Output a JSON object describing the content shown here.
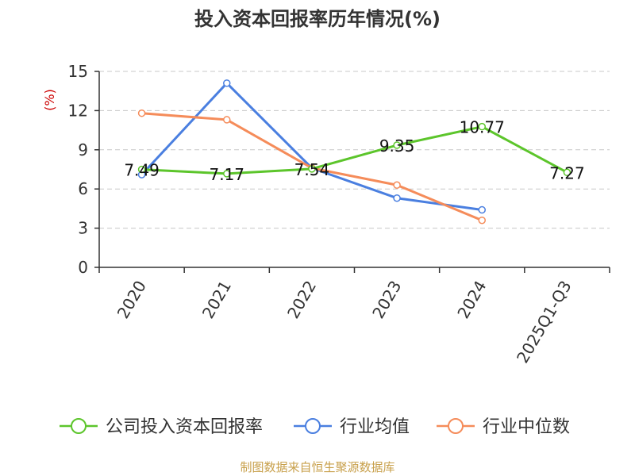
{
  "chart_data": {
    "type": "line",
    "title": "投入资本回报率历年情况(%)",
    "ylabel": "(%)",
    "ylim": [
      0,
      15
    ],
    "yticks": [
      0,
      3,
      6,
      9,
      12,
      15
    ],
    "categories": [
      "2020",
      "2021",
      "2022",
      "2023",
      "2024",
      "2025Q1-Q3"
    ],
    "grid": true,
    "legend_position": "bottom",
    "series": [
      {
        "name": "公司投入资本回报率",
        "color": "#5cc52b",
        "values": [
          7.49,
          7.17,
          7.54,
          9.35,
          10.77,
          7.27
        ],
        "labels": [
          "7.49",
          "7.17",
          "7.54",
          "9.35",
          "10.77",
          "7.27"
        ]
      },
      {
        "name": "行业均值",
        "color": "#4a7fe0",
        "values": [
          7.1,
          14.1,
          7.6,
          5.3,
          4.4,
          null
        ]
      },
      {
        "name": "行业中位数",
        "color": "#f58c5a",
        "values": [
          11.8,
          11.3,
          7.6,
          6.3,
          3.6,
          null
        ]
      }
    ]
  },
  "source": "制图数据来自恒生聚源数据库"
}
